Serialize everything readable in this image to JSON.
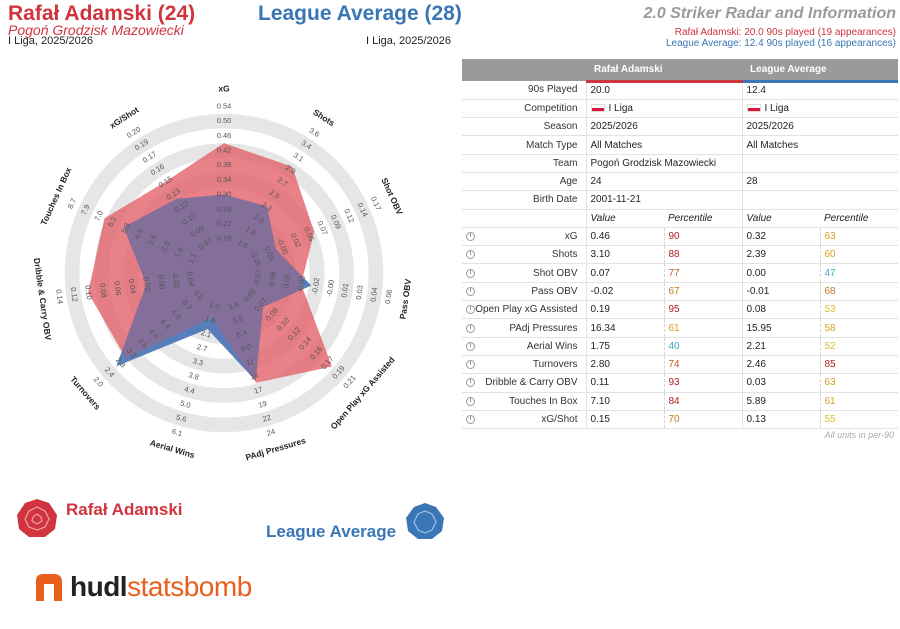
{
  "header": {
    "player_name": "Rafał Adamski (24)",
    "player_team": "Pogoń Grodzisk Mazowiecki",
    "player_comp": "I Liga, 2025/2026",
    "league_name": "League Average (28)",
    "league_comp": "I Liga, 2025/2026",
    "radar_title": "2.0 Striker Radar and Information",
    "note_player": "Rafał Adamski: 20.0 90s played (19 appearances)",
    "note_league": "League Average: 12.4 90s played (16 appearances)"
  },
  "colors": {
    "player": "#e35d66",
    "league": "#4c76b6",
    "ring": "#e6e6e6"
  },
  "chart_data": {
    "type": "radar",
    "ring_count": 10,
    "axes": [
      {
        "name": "xG",
        "ticks": [
          "0.54",
          "0.50",
          "0.46",
          "0.42",
          "0.38",
          "0.34",
          "0.30",
          "0.26",
          "0.22",
          "0.18"
        ],
        "player": 0.46,
        "league": 0.32,
        "min": 0.18,
        "max": 0.54
      },
      {
        "name": "Shots",
        "ticks": [
          "3.6",
          "3.4",
          "3.1",
          "2.9",
          "2.7",
          "2.5",
          "2.3",
          "2.0",
          "1.8",
          "1.6"
        ],
        "player": 3.1,
        "league": 2.39,
        "min": 1.6,
        "max": 3.6
      },
      {
        "name": "Shot OBV",
        "ticks": [
          "0.17",
          "0.14",
          "0.12",
          "0.09",
          "0.07",
          "0.05",
          "0.02",
          "-0.00",
          "-0.03",
          "-0.05"
        ],
        "player": 0.07,
        "league": 0.0,
        "min": -0.05,
        "max": 0.17
      },
      {
        "name": "Pass OBV",
        "ticks": [
          "0.06",
          "0.04",
          "0.03",
          "0.01",
          "-0.00",
          "-0.02",
          "-0.03",
          "-0.05",
          "-0.06",
          "-0.07"
        ],
        "player": -0.02,
        "league": -0.01,
        "min": -0.07,
        "max": 0.06
      },
      {
        "name": "Open Play xG Assisted",
        "ticks": [
          "0.21",
          "0.19",
          "0.17",
          "0.16",
          "0.14",
          "0.12",
          "0.10",
          "0.09",
          "0.07",
          "0.05"
        ],
        "player": 0.19,
        "league": 0.08,
        "min": 0.05,
        "max": 0.21
      },
      {
        "name": "PAdj Pressures",
        "ticks": [
          "24",
          "22",
          "19",
          "17",
          "14",
          "11",
          "9.0",
          "6.4",
          "3.9",
          "1.4"
        ],
        "player": 16.34,
        "league": 15.95,
        "min": 1.4,
        "max": 24
      },
      {
        "name": "Aerial Wins",
        "ticks": [
          "6.1",
          "5.6",
          "5.0",
          "4.4",
          "3.8",
          "3.3",
          "2.7",
          "2.1",
          "1.6",
          "1.0"
        ],
        "player": 1.75,
        "league": 2.21,
        "min": 1.0,
        "max": 6.1
      },
      {
        "name": "Turnovers",
        "ticks": [
          "2.0",
          "2.4",
          "2.8",
          "3.2",
          "3.6",
          "4.0",
          "4.4",
          "4.8",
          "5.2",
          "5.6"
        ],
        "player": 2.8,
        "league": 2.46,
        "min": 5.6,
        "max": 2.0
      },
      {
        "name": "Dribble & Carry OBV",
        "ticks": [
          "0.14",
          "0.12",
          "0.10",
          "0.08",
          "0.06",
          "0.04",
          "0.02",
          "0.00",
          "-0.02",
          "-0.04"
        ],
        "player": 0.11,
        "league": 0.03,
        "min": -0.04,
        "max": 0.14
      },
      {
        "name": "Touches In Box",
        "ticks": [
          "8.7",
          "7.9",
          "7.0",
          "6.2",
          "5.3",
          "4.5",
          "3.6",
          "2.8",
          "1.9",
          "1.1"
        ],
        "player": 7.1,
        "league": 5.89,
        "min": 1.1,
        "max": 8.7
      },
      {
        "name": "xG/Shot",
        "ticks": [
          "0.20",
          "0.19",
          "0.17",
          "0.16",
          "0.15",
          "0.13",
          "0.12",
          "0.10",
          "0.09",
          "0.07"
        ],
        "player": 0.15,
        "league": 0.13,
        "min": 0.07,
        "max": 0.2
      }
    ]
  },
  "table": {
    "col_player": "Rafał Adamski",
    "col_league": "League Average",
    "info_rows": [
      {
        "label": "90s Played",
        "player": "20.0",
        "league": "12.4"
      },
      {
        "label": "Competition",
        "player": "I Liga",
        "league": "I Liga",
        "flag": true
      },
      {
        "label": "Season",
        "player": "2025/2026",
        "league": "2025/2026"
      },
      {
        "label": "Match Type",
        "player": "All Matches",
        "league": "All Matches"
      },
      {
        "label": "Team",
        "player": "Pogoń Grodzisk Mazowiecki",
        "league": ""
      },
      {
        "label": "Age",
        "player": "24",
        "league": "28"
      },
      {
        "label": "Birth Date",
        "player": "2001-11-21",
        "league": ""
      }
    ],
    "sub_value": "Value",
    "sub_percentile": "Percentile",
    "stat_rows": [
      {
        "label": "xG",
        "pv": "0.46",
        "pp": "90",
        "ppc": "#b02020",
        "lv": "0.32",
        "lp": "63",
        "lpc": "#d4a020"
      },
      {
        "label": "Shots",
        "pv": "3.10",
        "pp": "88",
        "ppc": "#b02020",
        "lv": "2.39",
        "lp": "60",
        "lpc": "#d4a020"
      },
      {
        "label": "Shot OBV",
        "pv": "0.07",
        "pp": "77",
        "ppc": "#c05a20",
        "lv": "0.00",
        "lp": "47",
        "lpc": "#3aa8c0"
      },
      {
        "label": "Pass OBV",
        "pv": "-0.02",
        "pp": "67",
        "ppc": "#c07820",
        "lv": "-0.01",
        "lp": "68",
        "lpc": "#c07820"
      },
      {
        "label": "Open Play xG Assisted",
        "pv": "0.19",
        "pp": "95",
        "ppc": "#b02020",
        "lv": "0.08",
        "lp": "53",
        "lpc": "#e0c030"
      },
      {
        "label": "PAdj Pressures",
        "pv": "16.34",
        "pp": "61",
        "ppc": "#d4a020",
        "lv": "15.95",
        "lp": "58",
        "lpc": "#d4a020"
      },
      {
        "label": "Aerial Wins",
        "pv": "1.75",
        "pp": "40",
        "ppc": "#3aa8c0",
        "lv": "2.21",
        "lp": "52",
        "lpc": "#e0c030"
      },
      {
        "label": "Turnovers",
        "pv": "2.80",
        "pp": "74",
        "ppc": "#c05a20",
        "lv": "2.46",
        "lp": "85",
        "lpc": "#b02020"
      },
      {
        "label": "Dribble & Carry OBV",
        "pv": "0.11",
        "pp": "93",
        "ppc": "#b02020",
        "lv": "0.03",
        "lp": "63",
        "lpc": "#d4a020"
      },
      {
        "label": "Touches In Box",
        "pv": "7.10",
        "pp": "84",
        "ppc": "#b02020",
        "lv": "5.89",
        "lp": "61",
        "lpc": "#d4a020"
      },
      {
        "label": "xG/Shot",
        "pv": "0.15",
        "pp": "70",
        "ppc": "#c07820",
        "lv": "0.13",
        "lp": "55",
        "lpc": "#e0c030"
      }
    ],
    "footer": "All units in per-90"
  },
  "legend": {
    "player": "Rafał Adamski",
    "league": "League Average"
  },
  "brand": {
    "part1": "hudl",
    "part2": "statsbomb"
  }
}
